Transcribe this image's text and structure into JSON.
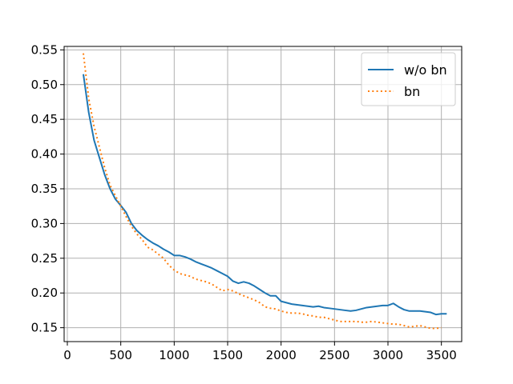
{
  "chart_data": {
    "type": "line",
    "title": "",
    "xlabel": "",
    "ylabel": "",
    "xlim": [
      -30,
      3690
    ],
    "ylim": [
      0.13,
      0.555
    ],
    "grid": true,
    "legend_position": "top-right",
    "x_ticks": [
      0,
      500,
      1000,
      1500,
      2000,
      2500,
      3000,
      3500
    ],
    "x_tick_labels": [
      "0",
      "500",
      "1000",
      "1500",
      "2000",
      "2500",
      "3000",
      "3500"
    ],
    "y_ticks": [
      0.15,
      0.2,
      0.25,
      0.3,
      0.35,
      0.4,
      0.45,
      0.5,
      0.55
    ],
    "y_tick_labels": [
      "0.15",
      "0.20",
      "0.25",
      "0.30",
      "0.35",
      "0.40",
      "0.45",
      "0.50",
      "0.55"
    ],
    "series": [
      {
        "name": "w/o bn",
        "color": "#1f77b4",
        "style": "solid",
        "x": [
          150,
          200,
          250,
          300,
          350,
          400,
          450,
          500,
          550,
          600,
          650,
          700,
          750,
          800,
          850,
          900,
          950,
          1000,
          1050,
          1100,
          1150,
          1200,
          1250,
          1300,
          1350,
          1400,
          1450,
          1500,
          1550,
          1600,
          1650,
          1700,
          1750,
          1800,
          1850,
          1900,
          1950,
          2000,
          2050,
          2100,
          2150,
          2200,
          2250,
          2300,
          2350,
          2400,
          2450,
          2500,
          2550,
          2600,
          2650,
          2700,
          2750,
          2800,
          2850,
          2900,
          2950,
          3000,
          3050,
          3100,
          3150,
          3200,
          3250,
          3300,
          3350,
          3400,
          3450,
          3500,
          3550
        ],
        "y": [
          0.515,
          0.46,
          0.42,
          0.395,
          0.37,
          0.35,
          0.335,
          0.326,
          0.316,
          0.3,
          0.29,
          0.283,
          0.277,
          0.272,
          0.268,
          0.263,
          0.259,
          0.254,
          0.254,
          0.252,
          0.249,
          0.245,
          0.242,
          0.239,
          0.236,
          0.232,
          0.228,
          0.224,
          0.217,
          0.214,
          0.216,
          0.214,
          0.21,
          0.205,
          0.2,
          0.196,
          0.196,
          0.188,
          0.186,
          0.184,
          0.183,
          0.182,
          0.181,
          0.18,
          0.181,
          0.179,
          0.178,
          0.177,
          0.176,
          0.175,
          0.174,
          0.175,
          0.177,
          0.179,
          0.18,
          0.181,
          0.182,
          0.182,
          0.185,
          0.18,
          0.176,
          0.174,
          0.174,
          0.174,
          0.173,
          0.172,
          0.169,
          0.17,
          0.17
        ]
      },
      {
        "name": "bn",
        "color": "#ff7f0e",
        "style": "dotted",
        "x": [
          150,
          200,
          250,
          300,
          350,
          400,
          450,
          500,
          550,
          600,
          650,
          700,
          750,
          800,
          850,
          900,
          950,
          1000,
          1050,
          1100,
          1150,
          1200,
          1250,
          1300,
          1350,
          1400,
          1450,
          1500,
          1550,
          1600,
          1650,
          1700,
          1750,
          1800,
          1850,
          1900,
          1950,
          2000,
          2050,
          2100,
          2150,
          2200,
          2250,
          2300,
          2350,
          2400,
          2450,
          2500,
          2550,
          2600,
          2650,
          2700,
          2750,
          2800,
          2850,
          2900,
          2950,
          3000,
          3050,
          3100,
          3150,
          3200,
          3250,
          3300,
          3350,
          3400,
          3450,
          3500
        ],
        "y": [
          0.545,
          0.48,
          0.44,
          0.41,
          0.38,
          0.355,
          0.34,
          0.325,
          0.31,
          0.296,
          0.285,
          0.277,
          0.266,
          0.262,
          0.256,
          0.25,
          0.24,
          0.233,
          0.228,
          0.226,
          0.224,
          0.22,
          0.218,
          0.216,
          0.213,
          0.208,
          0.203,
          0.205,
          0.203,
          0.199,
          0.196,
          0.193,
          0.19,
          0.186,
          0.18,
          0.178,
          0.177,
          0.174,
          0.172,
          0.171,
          0.171,
          0.17,
          0.168,
          0.167,
          0.165,
          0.165,
          0.163,
          0.161,
          0.159,
          0.159,
          0.159,
          0.159,
          0.158,
          0.158,
          0.159,
          0.158,
          0.157,
          0.156,
          0.155,
          0.155,
          0.153,
          0.151,
          0.152,
          0.153,
          0.151,
          0.149,
          0.149,
          0.15
        ]
      }
    ]
  }
}
